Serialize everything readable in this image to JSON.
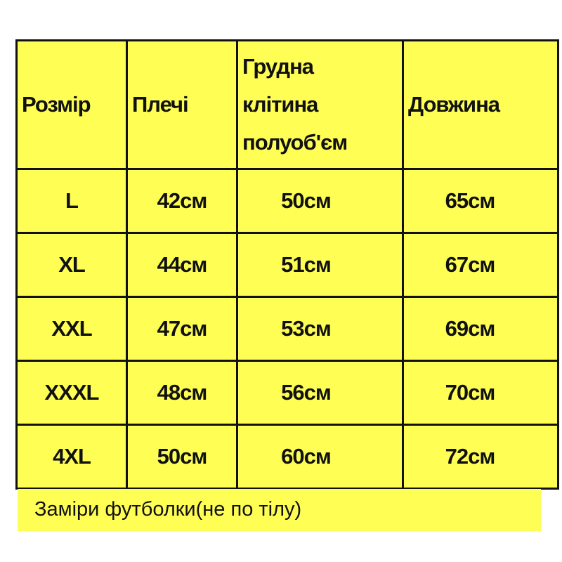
{
  "table": {
    "headers": [
      "Розмір",
      "Плечі",
      "Грудна клітина полуоб'єм",
      "Довжина"
    ],
    "header_lines": {
      "chest": [
        "Грудна",
        "клітина",
        "полуоб'єм"
      ]
    },
    "rows": [
      [
        "L",
        "42см",
        "50см",
        "65см"
      ],
      [
        "XL",
        "44см",
        "51см",
        "67см"
      ],
      [
        "XXL",
        "47см",
        "53см",
        "69см"
      ],
      [
        "XXXL",
        "48см",
        "56см",
        "70см"
      ],
      [
        "4XL",
        "50см",
        "60см",
        "72см"
      ]
    ]
  },
  "note": "Заміри футболки(не по тілу)",
  "colors": {
    "background": "#fefe55",
    "border": "#111111"
  }
}
